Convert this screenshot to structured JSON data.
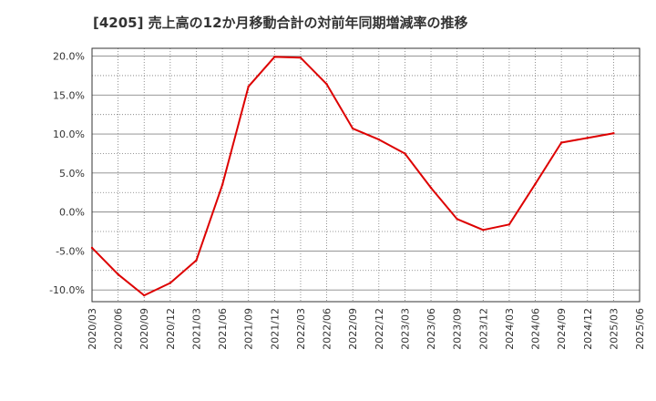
{
  "chart_data": {
    "type": "line",
    "title": "[4205]  売上高の12か月移動合計の対前年同期増減率の推移",
    "xlabel": "",
    "ylabel": "",
    "ylim": [
      -11.5,
      21.0
    ],
    "y_ticks": [
      {
        "value": 20.0,
        "label": "20.0%"
      },
      {
        "value": 15.0,
        "label": "15.0%"
      },
      {
        "value": 10.0,
        "label": "10.0%"
      },
      {
        "value": 5.0,
        "label": "5.0%"
      },
      {
        "value": 0.0,
        "label": "0.0%"
      },
      {
        "value": -5.0,
        "label": "-5.0%"
      },
      {
        "value": -10.0,
        "label": "-10.0%"
      }
    ],
    "categories": [
      "2020/03",
      "2020/06",
      "2020/09",
      "2020/12",
      "2021/03",
      "2021/06",
      "2021/09",
      "2021/12",
      "2022/03",
      "2022/06",
      "2022/09",
      "2022/12",
      "2023/03",
      "2023/06",
      "2023/09",
      "2023/12",
      "2024/03",
      "2024/06",
      "2024/09",
      "2024/12",
      "2025/03",
      "2025/06"
    ],
    "series": [
      {
        "name": "対前年同期増減率",
        "color": "#dd0000",
        "values": [
          -4.6,
          -8.0,
          -10.7,
          -9.1,
          -6.2,
          3.5,
          16.1,
          19.9,
          19.8,
          16.4,
          10.7,
          9.3,
          7.5,
          3.1,
          -0.9,
          -2.3,
          -1.6,
          3.6,
          8.9,
          9.5,
          10.1,
          null
        ]
      }
    ],
    "grid": true,
    "legend": "none"
  }
}
